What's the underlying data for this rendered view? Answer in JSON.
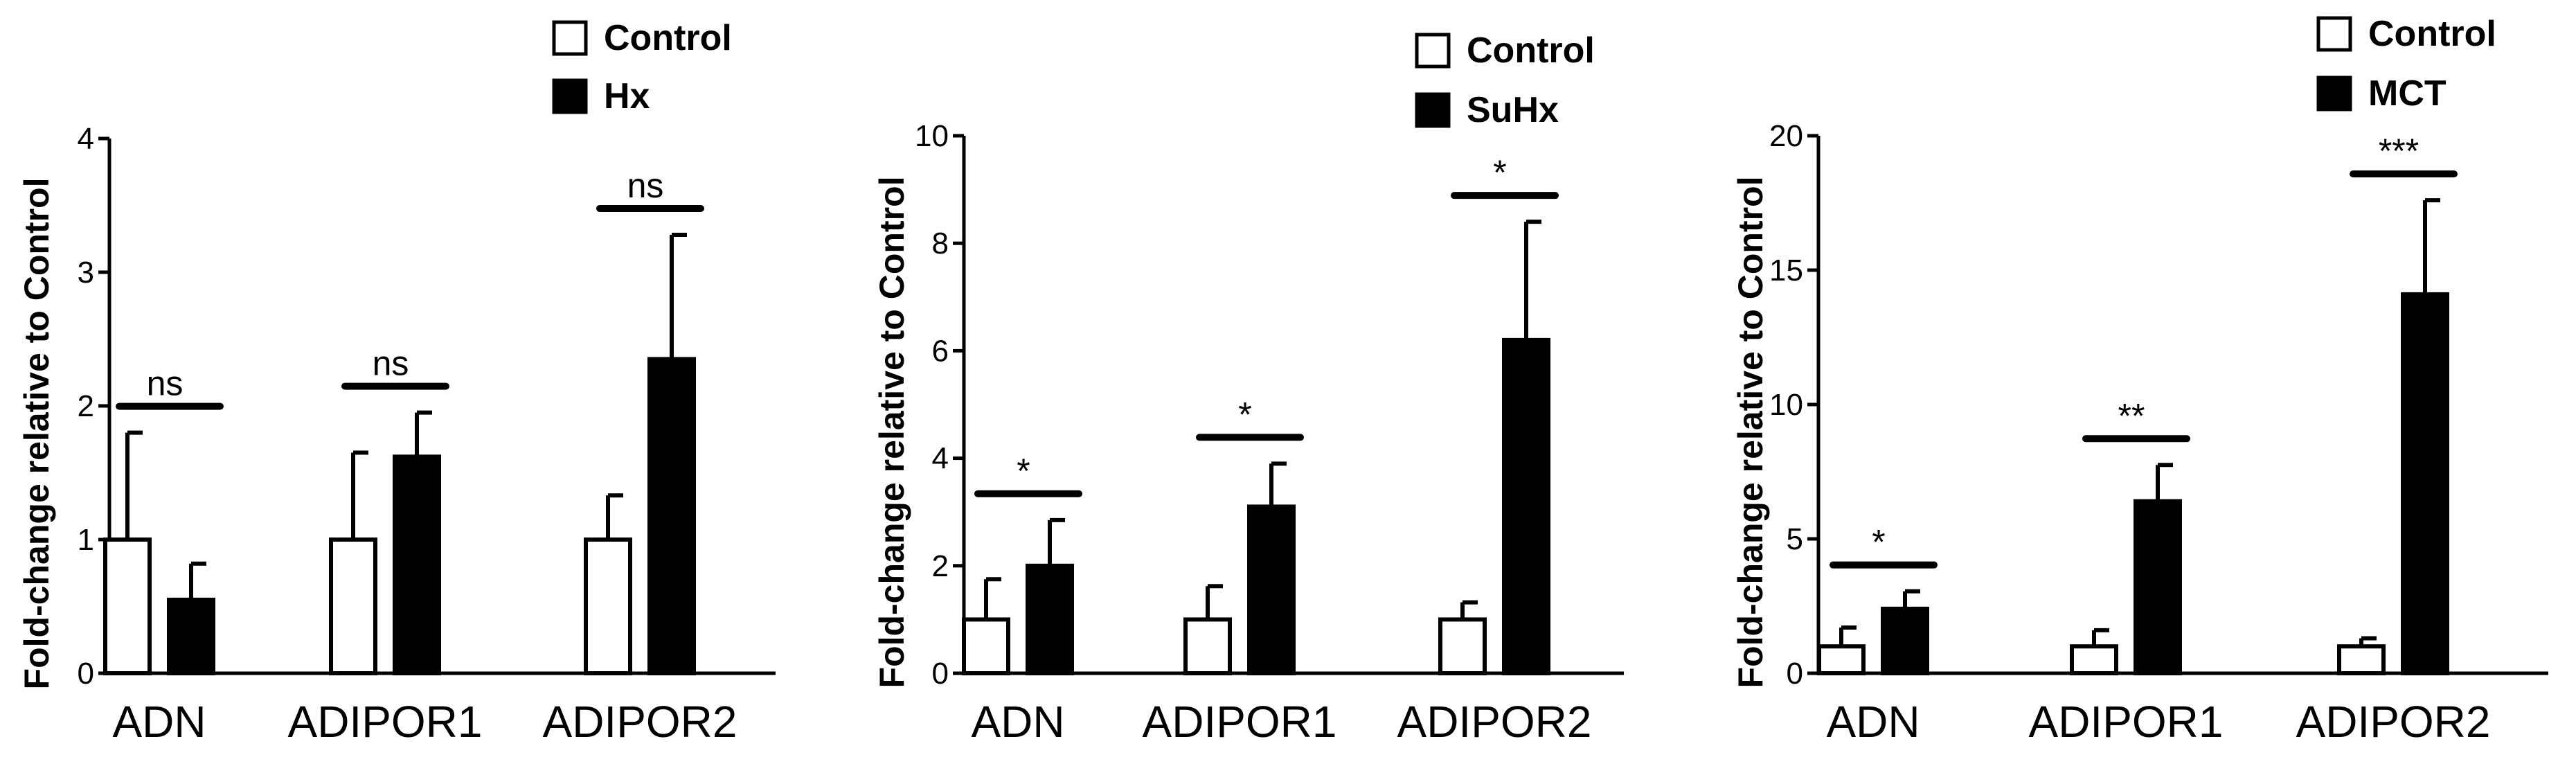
{
  "chart_data": [
    {
      "type": "bar",
      "ylabel": "Fold-change relative to Control",
      "categories": [
        "ADN",
        "ADIPOR1",
        "ADIPOR2"
      ],
      "ylim": [
        0,
        4
      ],
      "yticks": [
        0,
        1,
        2,
        3,
        4
      ],
      "legend_position": "top-right",
      "grid": false,
      "series": [
        {
          "name": "Control",
          "values": [
            1.0,
            1.0,
            1.0
          ],
          "errors": [
            0.8,
            0.65,
            0.33
          ],
          "color": "#ffffff"
        },
        {
          "name": "Hx",
          "values": [
            0.55,
            1.62,
            2.35
          ],
          "errors": [
            0.27,
            0.33,
            0.93
          ],
          "color": "#000000"
        }
      ],
      "significance": [
        "ns",
        "ns",
        "ns"
      ]
    },
    {
      "type": "bar",
      "ylabel": "Fold-change relative to Control",
      "categories": [
        "ADN",
        "ADIPOR1",
        "ADIPOR2"
      ],
      "ylim": [
        0,
        10
      ],
      "yticks": [
        0,
        2,
        4,
        6,
        8,
        10
      ],
      "legend_position": "top-right",
      "grid": false,
      "series": [
        {
          "name": "Control",
          "values": [
            1.0,
            1.0,
            1.0
          ],
          "errors": [
            0.75,
            0.62,
            0.32
          ],
          "color": "#ffffff"
        },
        {
          "name": "SuHx",
          "values": [
            2.0,
            3.1,
            6.2
          ],
          "errors": [
            0.85,
            0.8,
            2.2
          ],
          "color": "#000000"
        }
      ],
      "significance": [
        "*",
        "*",
        "*"
      ]
    },
    {
      "type": "bar",
      "ylabel": "Fold-change relative to Control",
      "categories": [
        "ADN",
        "ADIPOR1",
        "ADIPOR2"
      ],
      "ylim": [
        0,
        20
      ],
      "yticks": [
        0,
        5,
        10,
        15,
        20
      ],
      "legend_position": "top-right",
      "grid": false,
      "series": [
        {
          "name": "Control",
          "values": [
            1.0,
            1.0,
            1.0
          ],
          "errors": [
            0.7,
            0.6,
            0.3
          ],
          "color": "#ffffff"
        },
        {
          "name": "MCT",
          "values": [
            2.4,
            6.4,
            14.1
          ],
          "errors": [
            0.65,
            1.35,
            3.5
          ],
          "color": "#000000"
        }
      ],
      "significance": [
        "*",
        "**",
        "***"
      ]
    }
  ]
}
